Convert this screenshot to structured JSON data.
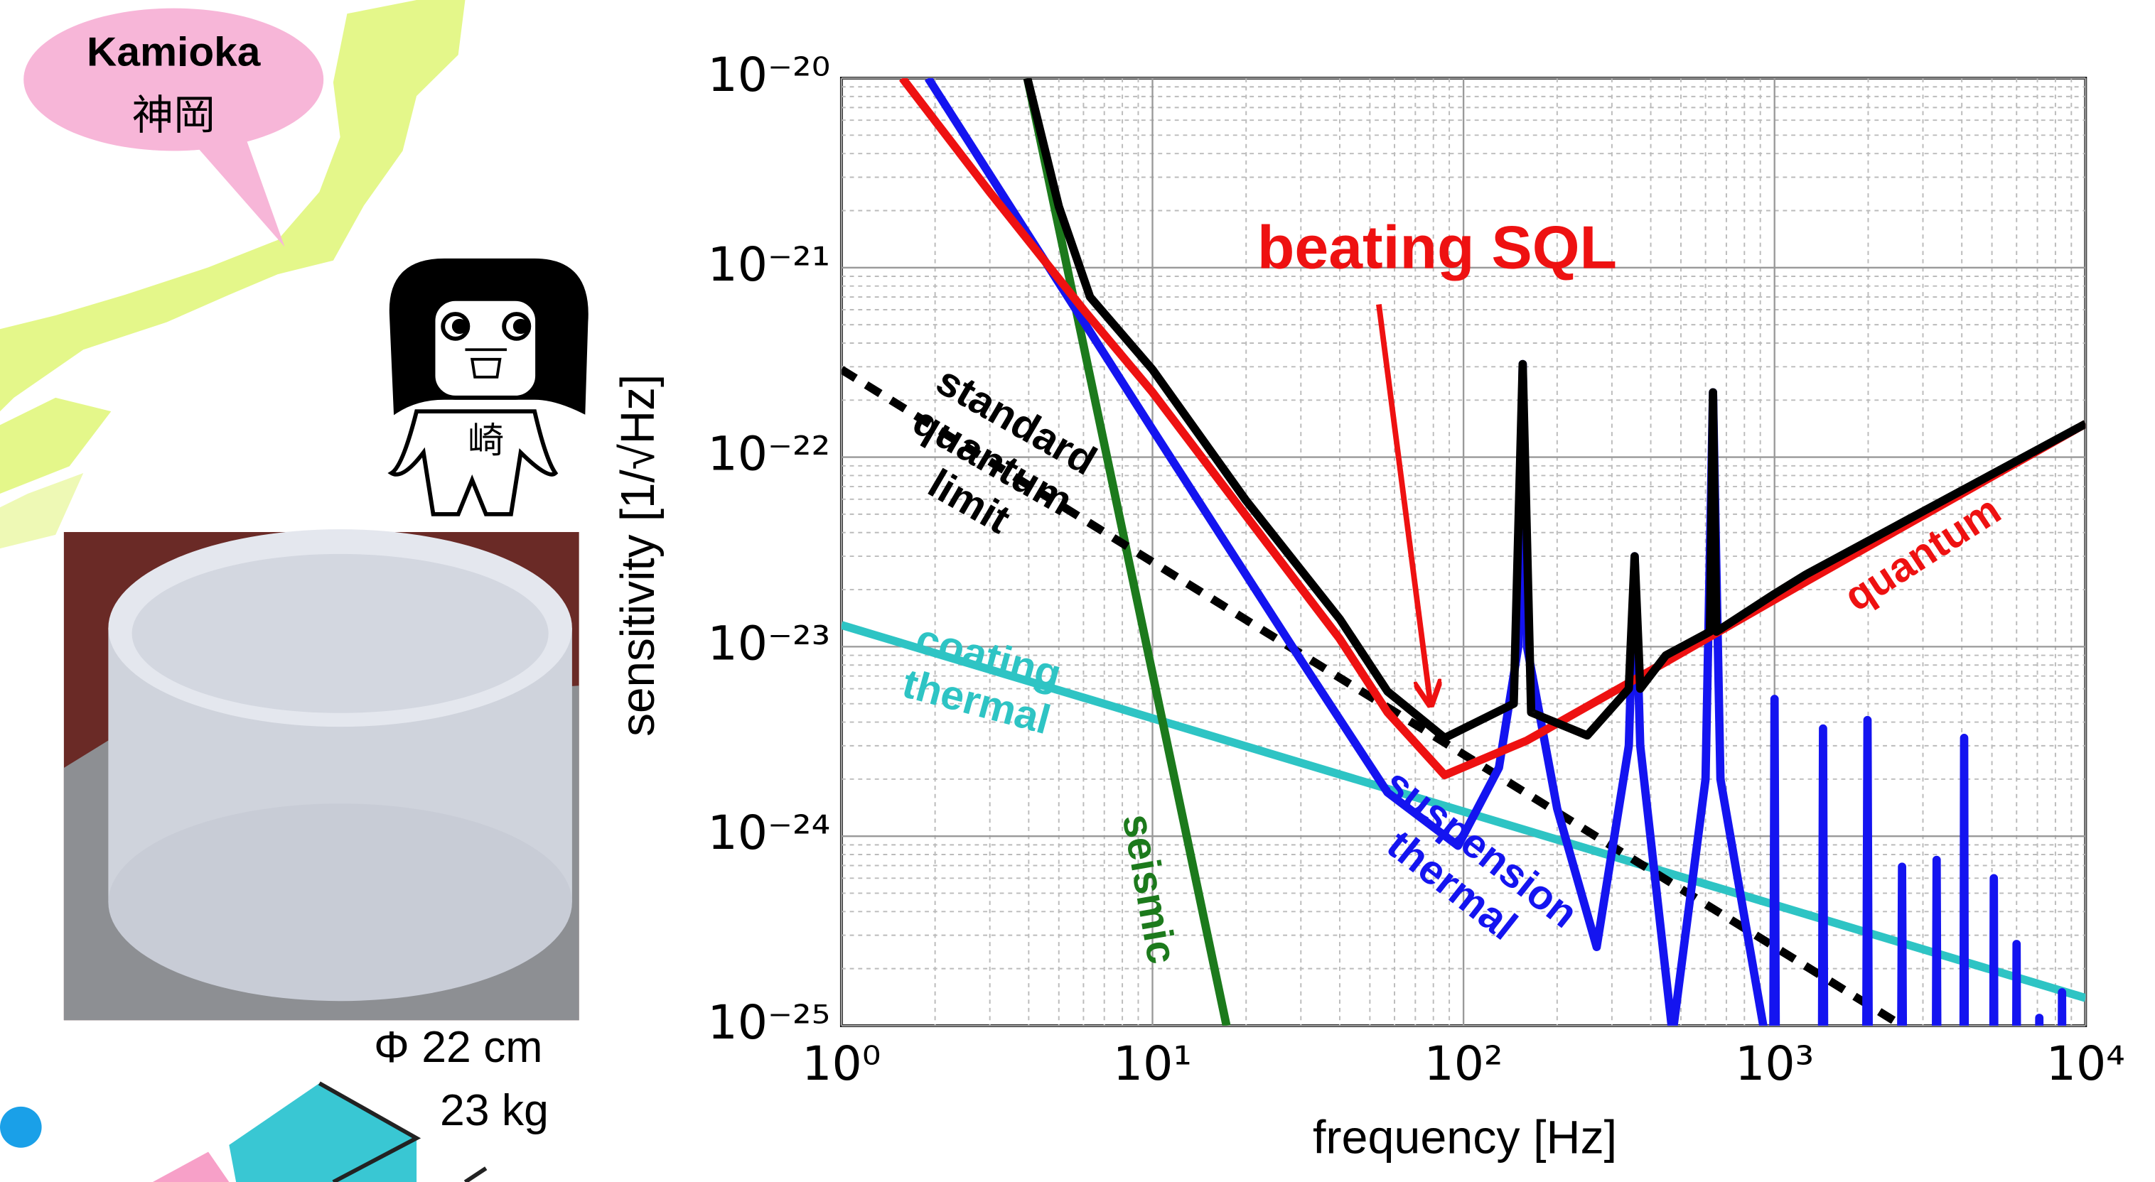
{
  "chart_data": {
    "type": "line",
    "xlabel": "frequency [Hz]",
    "ylabel": "sensitivity [1/√Hz]",
    "xscale": "log",
    "yscale": "log",
    "xlim": [
      1,
      10000
    ],
    "ylim": [
      1e-25,
      1e-20
    ],
    "xticks": [
      {
        "value": 1,
        "label": "10⁰"
      },
      {
        "value": 10,
        "label": "10¹"
      },
      {
        "value": 100,
        "label": "10²"
      },
      {
        "value": 1000,
        "label": "10³"
      },
      {
        "value": 10000,
        "label": "10⁴"
      }
    ],
    "yticks": [
      {
        "value": 1e-25,
        "label": "10⁻²⁵"
      },
      {
        "value": 1e-24,
        "label": "10⁻²⁴"
      },
      {
        "value": 1e-23,
        "label": "10⁻²³"
      },
      {
        "value": 1e-22,
        "label": "10⁻²²"
      },
      {
        "value": 1e-21,
        "label": "10⁻²¹"
      },
      {
        "value": 1e-20,
        "label": "10⁻²⁰"
      }
    ],
    "grid": true,
    "annotations": [
      {
        "text": "beating SQL",
        "color": "#ee1111"
      }
    ],
    "series": [
      {
        "name": "coating thermal",
        "color": "#2ec4c4",
        "x": [
          1,
          10000
        ],
        "values": [
          1.3e-23,
          1.4e-25
        ]
      },
      {
        "name": "seismic",
        "color": "#1c7a1c",
        "x": [
          3.96,
          17.3
        ],
        "values": [
          1e-20,
          1e-25
        ]
      },
      {
        "name": "standard quantum limit",
        "color": "#000000",
        "linestyle": "dashed",
        "x": [
          1,
          2570
        ],
        "values": [
          2.9e-22,
          1e-25
        ]
      },
      {
        "name": "suspension thermal",
        "color": "#1414f0",
        "x": [
          1.9,
          10,
          30,
          57,
          96,
          130,
          150,
          155,
          160,
          200,
          268,
          340,
          355,
          370,
          470,
          600,
          634,
          670,
          990,
          1000,
          1010,
          1420,
          1432,
          1445,
          1970,
          1990,
          2010,
          2550,
          2570,
          2590,
          3300,
          3320,
          3340,
          4050,
          4070,
          4090,
          5050,
          5070,
          5090,
          5980,
          6000,
          6020,
          7080,
          7100,
          7120,
          8380,
          8400,
          8420
        ],
        "values": [
          1e-20,
          1.4e-22,
          8.5e-24,
          1.7e-24,
          8.9e-25,
          2.3e-24,
          1e-23,
          3.1e-22,
          1e-23,
          1.4e-24,
          2.6e-25,
          3e-24,
          3e-23,
          3e-24,
          9e-26,
          2e-24,
          2.2e-22,
          2e-24,
          5e-26,
          5.3e-24,
          5e-26,
          5e-26,
          3.7e-24,
          5e-26,
          5e-26,
          4.1e-24,
          5e-26,
          5e-26,
          6.9e-25,
          5e-26,
          5e-26,
          7.5e-25,
          5e-26,
          5e-26,
          3.3e-24,
          5e-26,
          5e-26,
          6e-25,
          5e-26,
          5e-26,
          2.7e-25,
          5e-26,
          5e-26,
          1.1e-25,
          5e-26,
          5e-26,
          1.5e-25,
          5e-26
        ]
      },
      {
        "name": "quantum",
        "color": "#ee1111",
        "x": [
          1.57,
          3,
          6,
          10,
          20.6,
          40,
          57,
          87,
          160,
          447,
          1260,
          10000
        ],
        "values": [
          1e-20,
          2.5e-21,
          6e-22,
          2.2e-22,
          4.6e-23,
          1.1e-23,
          4.5e-24,
          2.1e-24,
          3.2e-24,
          8.3e-24,
          2.2e-23,
          1.5e-22
        ]
      },
      {
        "color": "#000000",
        "x": [
          3.96,
          5,
          6.3,
          10,
          20,
          40,
          57,
          87,
          145,
          155,
          165,
          250,
          340,
          355,
          370,
          447,
          620,
          634,
          650,
          1000,
          1260,
          10000
        ],
        "values": [
          1e-20,
          2.1e-21,
          7e-22,
          2.9e-22,
          5.9e-23,
          1.4e-23,
          5.8e-24,
          3.3e-24,
          5e-24,
          3.1e-22,
          4.5e-24,
          3.4e-24,
          6e-24,
          3e-23,
          6e-24,
          9e-24,
          1.2e-23,
          2.2e-22,
          1.2e-23,
          1.9e-23,
          2.4e-23,
          1.5e-22
        ]
      }
    ]
  },
  "illustration": {
    "bubble": {
      "line1": "Kamioka",
      "line2": "神岡"
    },
    "figure_label": "崎",
    "mirror": {
      "diameter": "Φ 22 cm",
      "mass": "23 kg"
    }
  }
}
